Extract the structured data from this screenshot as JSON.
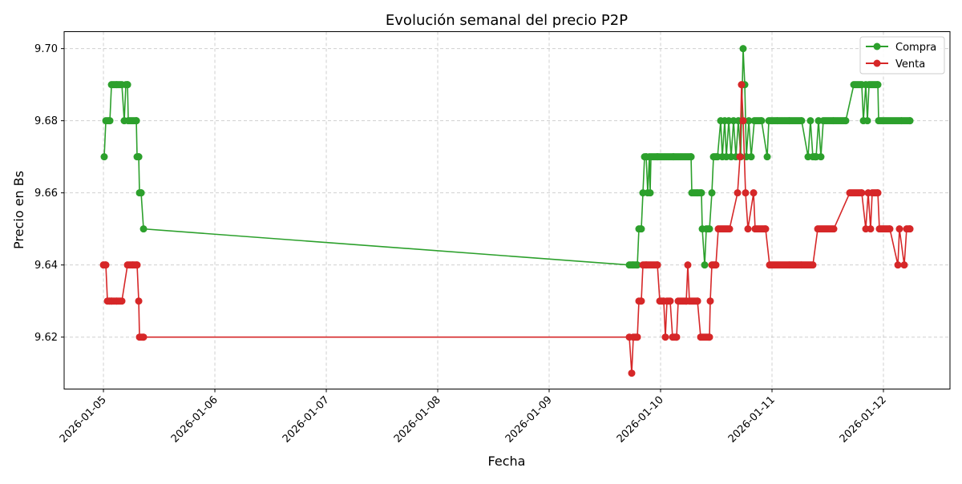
{
  "chart_data": {
    "type": "line",
    "title": "Evolución semanal del precio P2P",
    "xlabel": "Fecha",
    "ylabel": "Precio en Bs",
    "xlim": [
      "2026-01-04 15:32",
      "2026-01-12 14:20"
    ],
    "ylim": [
      9.6056,
      9.7047
    ],
    "x_ticks": [
      "2026-01-05",
      "2026-01-06",
      "2026-01-07",
      "2026-01-08",
      "2026-01-09",
      "2026-01-10",
      "2026-01-11",
      "2026-01-12"
    ],
    "y_ticks": [
      "9.62",
      "9.64",
      "9.66",
      "9.68",
      "9.70"
    ],
    "grid": true,
    "legend_position": "top-right",
    "series": [
      {
        "name": "Compra",
        "color": "#2ca02c",
        "points": [
          [
            "2026-01-05 00:10",
            9.67
          ],
          [
            "2026-01-05 00:31",
            9.68
          ],
          [
            "2026-01-05 01:23",
            9.68
          ],
          [
            "2026-01-05 01:44",
            9.69
          ],
          [
            "2026-01-05 02:56",
            9.69
          ],
          [
            "2026-01-05 03:58",
            9.69
          ],
          [
            "2026-01-05 04:29",
            9.68
          ],
          [
            "2026-01-05 04:50",
            9.69
          ],
          [
            "2026-01-05 05:11",
            9.69
          ],
          [
            "2026-01-05 05:21",
            9.68
          ],
          [
            "2026-01-05 06:23",
            9.68
          ],
          [
            "2026-01-05 07:05",
            9.68
          ],
          [
            "2026-01-05 07:15",
            9.67
          ],
          [
            "2026-01-05 07:36",
            9.67
          ],
          [
            "2026-01-05 07:46",
            9.66
          ],
          [
            "2026-01-05 08:07",
            9.66
          ],
          [
            "2026-01-05 08:38",
            9.65
          ],
          [
            "2026-01-09 17:16",
            9.64
          ],
          [
            "2026-01-09 18:08",
            9.64
          ],
          [
            "2026-01-09 19:00",
            9.64
          ],
          [
            "2026-01-09 19:20",
            9.65
          ],
          [
            "2026-01-09 19:51",
            9.65
          ],
          [
            "2026-01-09 20:12",
            9.66
          ],
          [
            "2026-01-09 20:33",
            9.67
          ],
          [
            "2026-01-09 20:54",
            9.67
          ],
          [
            "2026-01-09 21:14",
            9.66
          ],
          [
            "2026-01-09 21:35",
            9.67
          ],
          [
            "2026-01-09 21:45",
            9.66
          ],
          [
            "2026-01-09 21:56",
            9.67
          ],
          [
            "2026-01-09 23:19",
            9.67
          ],
          [
            "2026-01-10 01:02",
            9.67
          ],
          [
            "2026-01-10 02:46",
            9.67
          ],
          [
            "2026-01-10 04:29",
            9.67
          ],
          [
            "2026-01-10 06:34",
            9.67
          ],
          [
            "2026-01-10 06:44",
            9.66
          ],
          [
            "2026-01-10 07:57",
            9.66
          ],
          [
            "2026-01-10 08:48",
            9.66
          ],
          [
            "2026-01-10 08:59",
            9.65
          ],
          [
            "2026-01-10 09:30",
            9.64
          ],
          [
            "2026-01-10 09:51",
            9.65
          ],
          [
            "2026-01-10 10:32",
            9.65
          ],
          [
            "2026-01-10 11:03",
            9.66
          ],
          [
            "2026-01-10 11:24",
            9.67
          ],
          [
            "2026-01-10 12:16",
            9.67
          ],
          [
            "2026-01-10 12:57",
            9.68
          ],
          [
            "2026-01-10 13:18",
            9.67
          ],
          [
            "2026-01-10 13:49",
            9.68
          ],
          [
            "2026-01-10 14:10",
            9.67
          ],
          [
            "2026-01-10 14:41",
            9.68
          ],
          [
            "2026-01-10 15:12",
            9.67
          ],
          [
            "2026-01-10 15:43",
            9.68
          ],
          [
            "2026-01-10 16:14",
            9.67
          ],
          [
            "2026-01-10 16:45",
            9.68
          ],
          [
            "2026-01-10 17:16",
            9.67
          ],
          [
            "2026-01-10 17:47",
            9.7
          ],
          [
            "2026-01-10 18:08",
            9.69
          ],
          [
            "2026-01-10 18:29",
            9.67
          ],
          [
            "2026-01-10 19:00",
            9.68
          ],
          [
            "2026-01-10 19:31",
            9.67
          ],
          [
            "2026-01-10 20:12",
            9.68
          ],
          [
            "2026-01-10 21:45",
            9.68
          ],
          [
            "2026-01-10 22:58",
            9.67
          ],
          [
            "2026-01-10 23:19",
            9.68
          ],
          [
            "2026-01-11 01:13",
            9.68
          ],
          [
            "2026-01-11 03:48",
            9.68
          ],
          [
            "2026-01-11 06:23",
            9.68
          ],
          [
            "2026-01-11 07:46",
            9.67
          ],
          [
            "2026-01-11 08:17",
            9.68
          ],
          [
            "2026-01-11 08:48",
            9.67
          ],
          [
            "2026-01-11 09:30",
            9.67
          ],
          [
            "2026-01-11 10:01",
            9.68
          ],
          [
            "2026-01-11 10:32",
            9.67
          ],
          [
            "2026-01-11 11:03",
            9.68
          ],
          [
            "2026-01-11 13:18",
            9.68
          ],
          [
            "2026-01-11 15:53",
            9.68
          ],
          [
            "2026-01-11 17:37",
            9.69
          ],
          [
            "2026-01-11 19:20",
            9.69
          ],
          [
            "2026-01-11 19:41",
            9.68
          ],
          [
            "2026-01-11 20:12",
            9.69
          ],
          [
            "2026-01-11 20:33",
            9.68
          ],
          [
            "2026-01-11 20:54",
            9.69
          ],
          [
            "2026-01-11 22:48",
            9.69
          ],
          [
            "2026-01-11 22:58",
            9.68
          ],
          [
            "2026-01-12 01:23",
            9.68
          ],
          [
            "2026-01-12 03:58",
            9.68
          ],
          [
            "2026-01-12 05:42",
            9.68
          ]
        ]
      },
      {
        "name": "Venta",
        "color": "#d62728",
        "points": [
          [
            "2026-01-05 00:00",
            9.64
          ],
          [
            "2026-01-05 00:31",
            9.64
          ],
          [
            "2026-01-05 00:52",
            9.63
          ],
          [
            "2026-01-05 01:23",
            9.63
          ],
          [
            "2026-01-05 01:44",
            9.63
          ],
          [
            "2026-01-05 02:56",
            9.63
          ],
          [
            "2026-01-05 03:58",
            9.63
          ],
          [
            "2026-01-05 05:11",
            9.64
          ],
          [
            "2026-01-05 06:23",
            9.64
          ],
          [
            "2026-01-05 07:15",
            9.64
          ],
          [
            "2026-01-05 07:36",
            9.63
          ],
          [
            "2026-01-05 07:46",
            9.62
          ],
          [
            "2026-01-05 08:38",
            9.62
          ],
          [
            "2026-01-09 17:16",
            9.62
          ],
          [
            "2026-01-09 17:47",
            9.61
          ],
          [
            "2026-01-09 18:08",
            9.62
          ],
          [
            "2026-01-09 19:00",
            9.62
          ],
          [
            "2026-01-09 19:20",
            9.63
          ],
          [
            "2026-01-09 19:51",
            9.63
          ],
          [
            "2026-01-09 20:12",
            9.64
          ],
          [
            "2026-01-09 20:54",
            9.64
          ],
          [
            "2026-01-09 21:35",
            9.64
          ],
          [
            "2026-01-09 23:19",
            9.64
          ],
          [
            "2026-01-09 23:50",
            9.63
          ],
          [
            "2026-01-10 00:41",
            9.63
          ],
          [
            "2026-01-10 01:02",
            9.62
          ],
          [
            "2026-01-10 01:23",
            9.63
          ],
          [
            "2026-01-10 02:04",
            9.63
          ],
          [
            "2026-01-10 02:35",
            9.62
          ],
          [
            "2026-01-10 03:27",
            9.62
          ],
          [
            "2026-01-10 03:48",
            9.63
          ],
          [
            "2026-01-10 05:32",
            9.63
          ],
          [
            "2026-01-10 05:52",
            9.64
          ],
          [
            "2026-01-10 06:13",
            9.63
          ],
          [
            "2026-01-10 07:57",
            9.63
          ],
          [
            "2026-01-10 08:38",
            9.62
          ],
          [
            "2026-01-10 10:32",
            9.62
          ],
          [
            "2026-01-10 10:42",
            9.63
          ],
          [
            "2026-01-10 11:03",
            9.64
          ],
          [
            "2026-01-10 11:55",
            9.64
          ],
          [
            "2026-01-10 12:26",
            9.65
          ],
          [
            "2026-01-10 14:51",
            9.65
          ],
          [
            "2026-01-10 16:35",
            9.66
          ],
          [
            "2026-01-10 17:06",
            9.67
          ],
          [
            "2026-01-10 17:26",
            9.69
          ],
          [
            "2026-01-10 17:47",
            9.68
          ],
          [
            "2026-01-10 18:18",
            9.66
          ],
          [
            "2026-01-10 18:49",
            9.65
          ],
          [
            "2026-01-10 20:02",
            9.66
          ],
          [
            "2026-01-10 20:22",
            9.65
          ],
          [
            "2026-01-10 22:37",
            9.65
          ],
          [
            "2026-01-10 23:29",
            9.64
          ],
          [
            "2026-01-11 03:48",
            9.64
          ],
          [
            "2026-01-11 06:23",
            9.64
          ],
          [
            "2026-01-11 08:48",
            9.64
          ],
          [
            "2026-01-11 09:51",
            9.65
          ],
          [
            "2026-01-11 13:18",
            9.65
          ],
          [
            "2026-01-11 16:45",
            9.66
          ],
          [
            "2026-01-11 19:20",
            9.66
          ],
          [
            "2026-01-11 20:12",
            9.65
          ],
          [
            "2026-01-11 20:43",
            9.66
          ],
          [
            "2026-01-11 21:14",
            9.65
          ],
          [
            "2026-01-11 21:35",
            9.66
          ],
          [
            "2026-01-11 22:48",
            9.66
          ],
          [
            "2026-01-11 23:08",
            9.65
          ],
          [
            "2026-01-12 01:23",
            9.65
          ],
          [
            "2026-01-12 03:07",
            9.64
          ],
          [
            "2026-01-12 03:27",
            9.65
          ],
          [
            "2026-01-12 04:29",
            9.64
          ],
          [
            "2026-01-12 05:00",
            9.65
          ],
          [
            "2026-01-12 05:42",
            9.65
          ]
        ]
      }
    ]
  }
}
